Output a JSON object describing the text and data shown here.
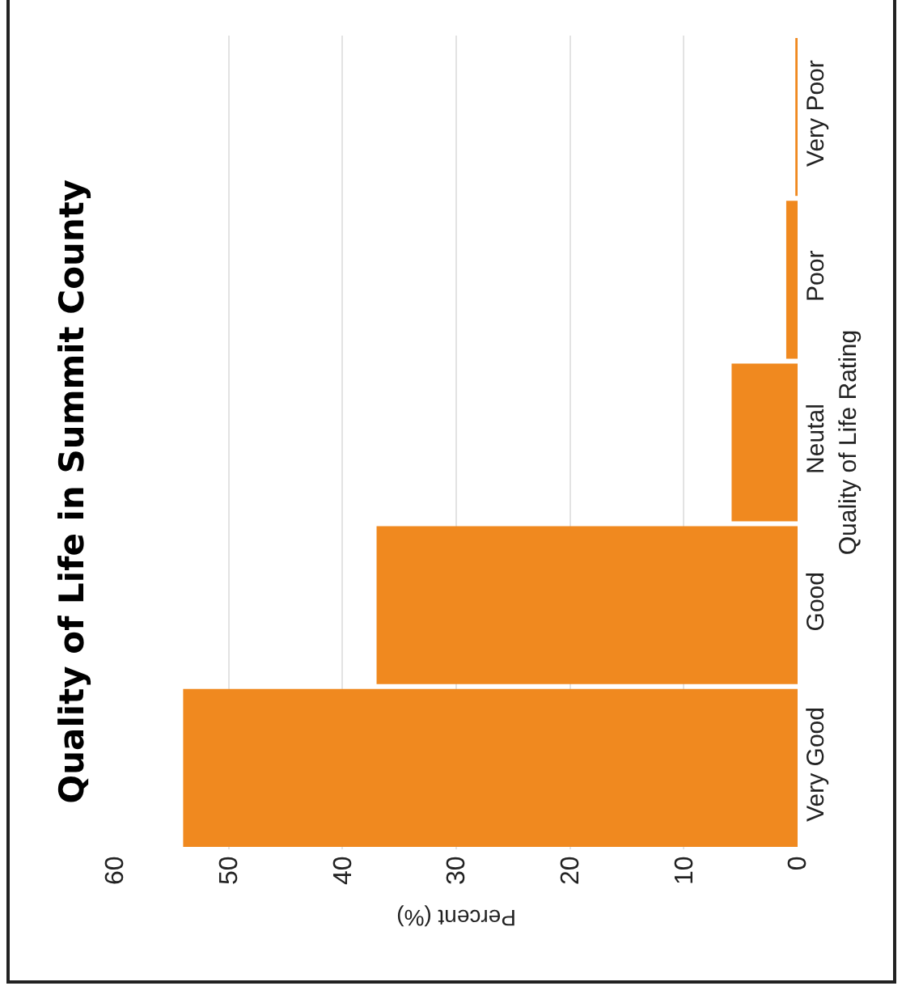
{
  "chart_data": {
    "type": "bar",
    "orientation": "horizontal",
    "title": "Quality of Life in Summit County",
    "ylabel": "Quality of Life Rating",
    "xlabel": "Percent (%)",
    "categories": [
      "Very Poor",
      "Poor",
      "Neutal",
      "Good",
      "Very Good"
    ],
    "values": [
      0.2,
      1,
      5.8,
      37,
      54
    ],
    "color": "#f0891f",
    "xlim": [
      60,
      0
    ],
    "xticks": [
      0,
      10,
      20,
      30,
      40,
      50,
      60
    ],
    "grid": "x"
  }
}
